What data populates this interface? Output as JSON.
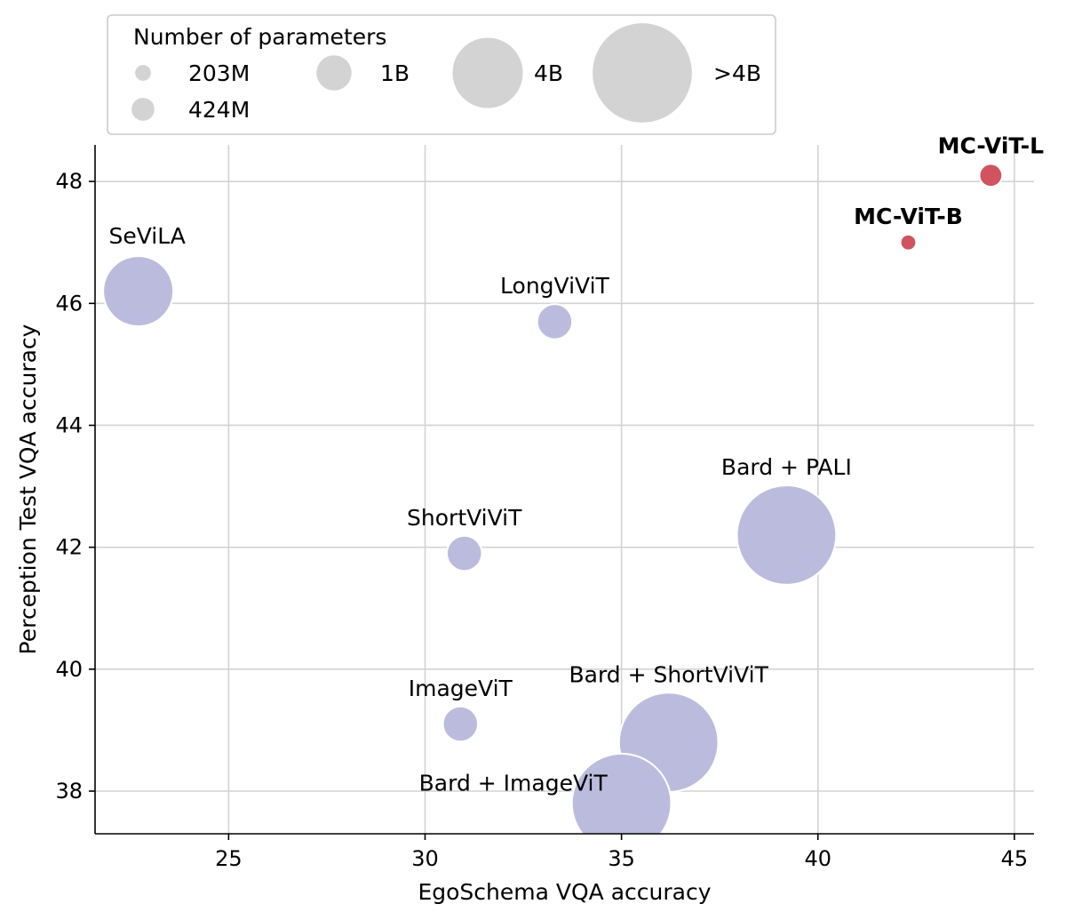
{
  "chart_data": {
    "type": "scatter",
    "title": "",
    "xlabel": "EgoSchema VQA accuracy",
    "ylabel": "Perception Test VQA accuracy",
    "xlim": [
      21.6,
      45.5
    ],
    "ylim": [
      37.3,
      48.6
    ],
    "xticks": [
      25,
      30,
      35,
      40,
      45
    ],
    "yticks": [
      38,
      40,
      42,
      44,
      46,
      48
    ],
    "grid": true,
    "legend": {
      "title": "Number of parameters",
      "placement": "top-left, outside above axes",
      "entries": [
        {
          "label": "203M",
          "params_m": 203
        },
        {
          "label": "424M",
          "params_m": 424
        },
        {
          "label": "1B",
          "params_m": 1000
        },
        {
          "label": "4B",
          "params_m": 4000
        },
        {
          "label": ">4B",
          "params_m": 8000
        }
      ]
    },
    "colors": {
      "baseline": "#bbbcdd",
      "ours": "#d0535f",
      "legend_marker": "#d3d3d3",
      "grid": "#d3d3d3"
    },
    "points": [
      {
        "name": "SeViLA",
        "x": 22.7,
        "y": 46.2,
        "params_m": 4000,
        "group": "baseline",
        "bold": false
      },
      {
        "name": "LongViViT",
        "x": 33.3,
        "y": 45.7,
        "params_m": 1000,
        "group": "baseline",
        "bold": false
      },
      {
        "name": "ShortViViT",
        "x": 31.0,
        "y": 41.9,
        "params_m": 1000,
        "group": "baseline",
        "bold": false
      },
      {
        "name": "ImageViT",
        "x": 30.9,
        "y": 39.1,
        "params_m": 1000,
        "group": "baseline",
        "bold": false
      },
      {
        "name": "Bard + PALI",
        "x": 39.2,
        "y": 42.2,
        "params_m": 8000,
        "group": "baseline",
        "bold": false
      },
      {
        "name": "Bard + ShortViViT",
        "x": 36.2,
        "y": 38.8,
        "params_m": 8000,
        "group": "baseline",
        "bold": false
      },
      {
        "name": "Bard + ImageViT",
        "x": 35.0,
        "y": 37.8,
        "params_m": 8000,
        "group": "baseline",
        "bold": false
      },
      {
        "name": "MC-ViT-B",
        "x": 42.3,
        "y": 47.0,
        "params_m": 203,
        "group": "ours",
        "bold": true
      },
      {
        "name": "MC-ViT-L",
        "x": 44.4,
        "y": 48.1,
        "params_m": 424,
        "group": "ours",
        "bold": true
      }
    ]
  }
}
